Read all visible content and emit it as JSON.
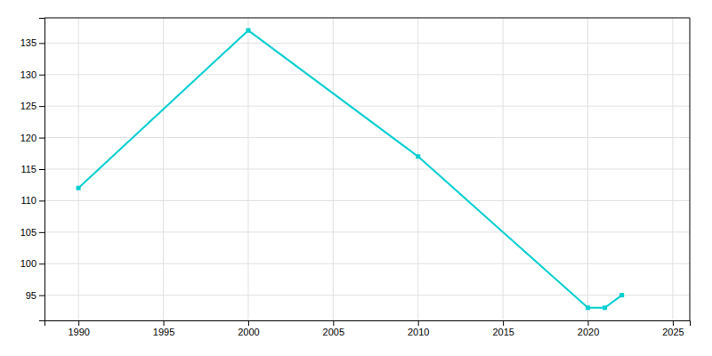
{
  "chart_data": {
    "type": "line",
    "x": [
      1990,
      2000,
      2010,
      2020,
      2021,
      2022
    ],
    "values": [
      112,
      137,
      117,
      93,
      93,
      95
    ],
    "color": "#00CED1",
    "marker": "square",
    "xlim": [
      1988,
      2026
    ],
    "ylim": [
      91,
      139
    ],
    "xticks": [
      1990,
      1995,
      2000,
      2005,
      2010,
      2015,
      2020,
      2025
    ],
    "yticks": [
      95,
      100,
      105,
      110,
      115,
      120,
      125,
      130,
      135
    ],
    "grid": true
  }
}
